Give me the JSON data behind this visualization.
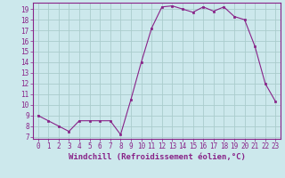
{
  "x": [
    0,
    1,
    2,
    3,
    4,
    5,
    6,
    7,
    8,
    9,
    10,
    11,
    12,
    13,
    14,
    15,
    16,
    17,
    18,
    19,
    20,
    21,
    22,
    23
  ],
  "y": [
    9,
    8.5,
    8,
    7.5,
    8.5,
    8.5,
    8.5,
    8.5,
    7.2,
    10.5,
    14,
    17.2,
    19.2,
    19.3,
    19.0,
    18.7,
    19.2,
    18.8,
    19.2,
    18.3,
    18.0,
    15.5,
    12.0,
    10.3
  ],
  "line_color": "#882288",
  "marker_color": "#882288",
  "bg_color": "#cce8ec",
  "grid_color": "#aacccc",
  "xlabel": "Windchill (Refroidissement éolien,°C)",
  "xlim": [
    -0.5,
    23.5
  ],
  "ylim": [
    6.8,
    19.6
  ],
  "yticks": [
    7,
    8,
    9,
    10,
    11,
    12,
    13,
    14,
    15,
    16,
    17,
    18,
    19
  ],
  "xticks": [
    0,
    1,
    2,
    3,
    4,
    5,
    6,
    7,
    8,
    9,
    10,
    11,
    12,
    13,
    14,
    15,
    16,
    17,
    18,
    19,
    20,
    21,
    22,
    23
  ],
  "label_fontsize": 6.5,
  "tick_fontsize": 5.5
}
